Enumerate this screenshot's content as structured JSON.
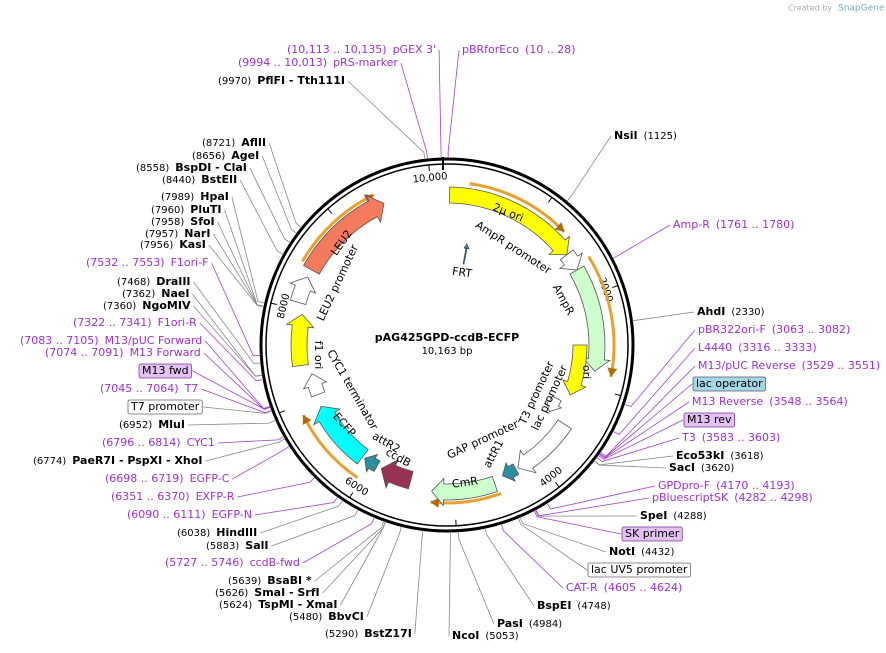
{
  "header": {
    "credit": "Created by",
    "brand": "SnapGene"
  },
  "plasmid": {
    "name": "pAG425GPD-ccdB-ECFP",
    "length": "10,163 bp"
  },
  "ruler": [
    "2000",
    "4000",
    "6000",
    "8000",
    "10,000"
  ],
  "sites": [
    {
      "name": "PflFI - Tth111I",
      "pos": "(9970)"
    },
    {
      "name": "AflII",
      "pos": "(8721)"
    },
    {
      "name": "AgeI",
      "pos": "(8656)"
    },
    {
      "name": "BspDI - ClaI",
      "pos": "(8558)"
    },
    {
      "name": "BstEII",
      "pos": "(8440)"
    },
    {
      "name": "HpaI",
      "pos": "(7989)"
    },
    {
      "name": "PluTI",
      "pos": "(7960)"
    },
    {
      "name": "SfoI",
      "pos": "(7958)"
    },
    {
      "name": "NarI",
      "pos": "(7957)"
    },
    {
      "name": "KasI",
      "pos": "(7956)"
    },
    {
      "name": "DraIII",
      "pos": "(7468)"
    },
    {
      "name": "NaeI",
      "pos": "(7362)"
    },
    {
      "name": "NgoMIV",
      "pos": "(7360)"
    },
    {
      "name": "MluI",
      "pos": "(6952)"
    },
    {
      "name": "PaeR7I - PspXI - XhoI",
      "pos": "(6774)"
    },
    {
      "name": "HindIII",
      "pos": "(6038)"
    },
    {
      "name": "SalI",
      "pos": "(5883)"
    },
    {
      "name": "BsaBI *",
      "pos": "(5639)"
    },
    {
      "name": "SmaI - SrfI",
      "pos": "(5626)"
    },
    {
      "name": "TspMI - XmaI",
      "pos": "(5624)"
    },
    {
      "name": "BbvCI",
      "pos": "(5480)"
    },
    {
      "name": "BstZ17I",
      "pos": "(5290)"
    },
    {
      "name": "NcoI",
      "pos": "(5053)"
    },
    {
      "name": "PasI",
      "pos": "(4984)"
    },
    {
      "name": "BspEI",
      "pos": "(4748)"
    },
    {
      "name": "NotI",
      "pos": "(4432)"
    },
    {
      "name": "SpeI",
      "pos": "(4288)"
    },
    {
      "name": "SacI",
      "pos": "(3620)"
    },
    {
      "name": "Eco53kI",
      "pos": "(3618)"
    },
    {
      "name": "AhdI",
      "pos": "(2330)"
    },
    {
      "name": "NsiI",
      "pos": "(1125)"
    }
  ],
  "features": [
    {
      "name": "pGEX 3'",
      "pos": "(10,113 .. 10,135)"
    },
    {
      "name": "pBRforEco",
      "pos": "(10 .. 28)"
    },
    {
      "name": "pRS-marker",
      "pos": "(9994 .. 10,013)"
    },
    {
      "name": "F1ori-F",
      "pos": "(7532 .. 7553)"
    },
    {
      "name": "F1ori-R",
      "pos": "(7322 .. 7341)"
    },
    {
      "name": "M13/pUC Forward",
      "pos": "(7083 .. 7105)"
    },
    {
      "name": "M13 Forward",
      "pos": "(7074 .. 7091)"
    },
    {
      "name": "T7",
      "pos": "(7045 .. 7064)"
    },
    {
      "name": "CYC1",
      "pos": "(6796 .. 6814)"
    },
    {
      "name": "EGFP-C",
      "pos": "(6698 .. 6719)"
    },
    {
      "name": "EXFP-R",
      "pos": "(6351 .. 6370)"
    },
    {
      "name": "EGFP-N",
      "pos": "(6090 .. 6111)"
    },
    {
      "name": "ccdB-fwd",
      "pos": "(5727 .. 5746)"
    },
    {
      "name": "CAT-R",
      "pos": "(4605 .. 4624)"
    },
    {
      "name": "pBluescriptSK",
      "pos": "(4282 .. 4298)"
    },
    {
      "name": "GPDpro-F",
      "pos": "(4170 .. 4193)"
    },
    {
      "name": "T3",
      "pos": "(3583 .. 3603)"
    },
    {
      "name": "M13 Reverse",
      "pos": "(3548 .. 3564)"
    },
    {
      "name": "M13/pUC Reverse",
      "pos": "(3529 .. 3551)"
    },
    {
      "name": "L4440",
      "pos": "(3316 .. 3333)"
    },
    {
      "name": "pBR322ori-F",
      "pos": "(3063 .. 3082)"
    },
    {
      "name": "Amp-R",
      "pos": "(1761 .. 1780)"
    }
  ],
  "boxes": [
    "M13 fwd",
    "T7 promoter",
    "lac operator",
    "M13 rev",
    "SK primer",
    "lac UV5 promoter"
  ],
  "map_features": [
    "2μ ori",
    "AmpR promoter",
    "AmpR",
    "ori",
    "T3 promoter",
    "lac promoter",
    "GAP promoter",
    "attR1",
    "CmR",
    "ccdB",
    "attR2",
    "ECFP",
    "CYC1 terminator",
    "f1 ori",
    "LEU2 promoter",
    "LEU2",
    "FRT"
  ]
}
